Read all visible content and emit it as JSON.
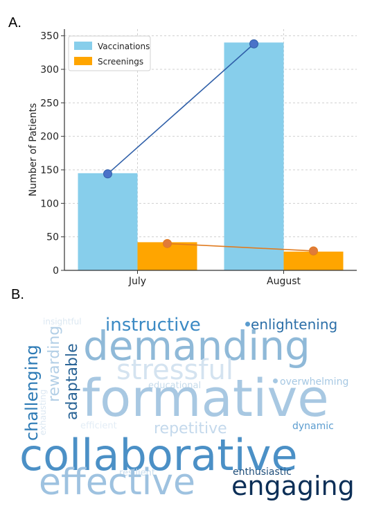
{
  "panel_a_label": "A.",
  "panel_b_label": "B.",
  "chart_data": {
    "type": "bar",
    "categories": [
      "July",
      "August"
    ],
    "ylabel": "Number of Patients",
    "xlabel": "",
    "ylim": [
      0,
      360
    ],
    "yticks": [
      0,
      50,
      100,
      150,
      200,
      250,
      300,
      350
    ],
    "grid": true,
    "legend_position": "top-left",
    "series": [
      {
        "name": "Vaccinations",
        "values": [
          145,
          340
        ],
        "color": "#87CEEB",
        "line_values": [
          144,
          338
        ],
        "line_color": "#2f5fa8",
        "marker_color": "#4a72c8"
      },
      {
        "name": "Screenings",
        "values": [
          42,
          28
        ],
        "color": "#FFA500",
        "line_values": [
          40,
          29
        ],
        "line_color": "#e07b20",
        "marker_color": "#e07b39"
      }
    ]
  },
  "word_cloud": [
    {
      "text": "insightful",
      "color": "#dce8f2",
      "size": 12
    },
    {
      "text": "instructive",
      "color": "#3b8ac4",
      "size": 26
    },
    {
      "text": "enlightening",
      "color": "#2c6fa8",
      "size": 20
    },
    {
      "text": "demanding",
      "color": "#8fb9d8",
      "size": 58
    },
    {
      "text": "challenging",
      "color": "#2c7ab5",
      "size": 24
    },
    {
      "text": "rewarding",
      "color": "#b3cfe6",
      "size": 22
    },
    {
      "text": "adaptable",
      "color": "#2a6496",
      "size": 22
    },
    {
      "text": "stressful",
      "color": "#d4e3f0",
      "size": 40
    },
    {
      "text": "educational",
      "color": "#c6dbeb",
      "size": 13
    },
    {
      "text": "overwhelming",
      "color": "#a6c8e3",
      "size": 14
    },
    {
      "text": "exhausting",
      "color": "#dbe7f2",
      "size": 12
    },
    {
      "text": "formative",
      "color": "#a8c8e2",
      "size": 74
    },
    {
      "text": "efficient",
      "color": "#e3edf6",
      "size": 13
    },
    {
      "text": "repetitive",
      "color": "#c4d9ec",
      "size": 22
    },
    {
      "text": "dynamic",
      "color": "#5b9ccf",
      "size": 14
    },
    {
      "text": "collaborative",
      "color": "#4b90c6",
      "size": 62
    },
    {
      "text": "resilient",
      "color": "#c9ddee",
      "size": 13
    },
    {
      "text": "enthusiastic",
      "color": "#1f4e7a",
      "size": 14
    },
    {
      "text": "effective",
      "color": "#9ec2e0",
      "size": 52
    },
    {
      "text": "engaging",
      "color": "#0c2f57",
      "size": 38
    }
  ]
}
